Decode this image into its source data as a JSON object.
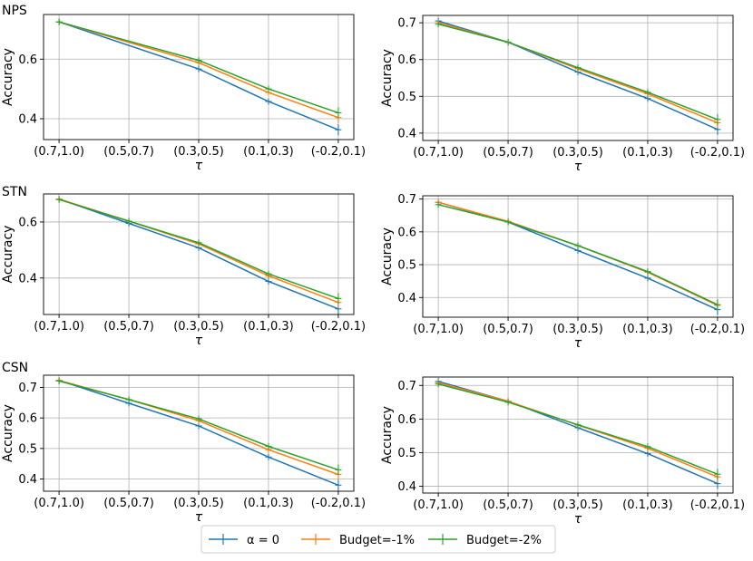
{
  "colors": {
    "alpha0": "#1f77b4",
    "budget1": "#ff7f0e",
    "budget2": "#2ca02c",
    "grid": "#b0b0b0"
  },
  "legend": {
    "location": "bottom-center",
    "items": [
      {
        "name": "α = 0",
        "color": "#1f77b4"
      },
      {
        "name": "Budget=-1%",
        "color": "#ff7f0e"
      },
      {
        "name": "Budget=-2%",
        "color": "#2ca02c"
      }
    ]
  },
  "chart_data": [
    {
      "type": "line",
      "row_label": "NPS",
      "xlabel": "τ",
      "ylabel": "Accuracy",
      "categories": [
        "(0.7,1.0)",
        "(0.5,0.7)",
        "(0.3,0.5)",
        "(0.1,0.3)",
        "(-0.2,0.1)"
      ],
      "ylim": [
        0.33,
        0.75
      ],
      "yticks": [
        0.4,
        0.6
      ],
      "ytick_labels": [
        "0.4",
        "0.6"
      ],
      "series": [
        {
          "name": "α = 0",
          "values": [
            0.725,
            null,
            0.567,
            0.458,
            0.363
          ]
        },
        {
          "name": "Budget=-1%",
          "values": [
            0.725,
            null,
            0.588,
            0.488,
            0.404
          ]
        },
        {
          "name": "Budget=-2%",
          "values": [
            0.725,
            null,
            0.596,
            0.5,
            0.42
          ]
        }
      ]
    },
    {
      "type": "line",
      "row_label": "",
      "xlabel": "τ",
      "ylabel": "Accuracy",
      "categories": [
        "(0.7,1.0)",
        "(0.5,0.7)",
        "(0.3,0.5)",
        "(0.1,0.3)",
        "(-0.2,0.1)"
      ],
      "ylim": [
        0.38,
        0.72
      ],
      "yticks": [
        0.4,
        0.5,
        0.6,
        0.7
      ],
      "ytick_labels": [
        "0.4",
        "0.5",
        "0.6",
        "0.7"
      ],
      "series": [
        {
          "name": "α = 0",
          "values": [
            0.705,
            0.647,
            0.566,
            0.494,
            0.41
          ]
        },
        {
          "name": "Budget=-1%",
          "values": [
            0.7,
            0.647,
            0.575,
            0.507,
            0.428
          ]
        },
        {
          "name": "Budget=-2%",
          "values": [
            0.696,
            0.647,
            0.578,
            0.511,
            0.437
          ]
        }
      ]
    },
    {
      "type": "line",
      "row_label": "STN",
      "xlabel": "τ",
      "ylabel": "Accuracy",
      "categories": [
        "(0.7,1.0)",
        "(0.5,0.7)",
        "(0.3,0.5)",
        "(0.1,0.3)",
        "(-0.2,0.1)"
      ],
      "ylim": [
        0.27,
        0.7
      ],
      "yticks": [
        0.4,
        0.6
      ],
      "ytick_labels": [
        "0.4",
        "0.6"
      ],
      "series": [
        {
          "name": "α = 0",
          "values": [
            0.682,
            0.595,
            0.508,
            0.388,
            0.29
          ]
        },
        {
          "name": "Budget=-1%",
          "values": [
            0.682,
            0.603,
            0.522,
            0.408,
            0.313
          ]
        },
        {
          "name": "Budget=-2%",
          "values": [
            0.68,
            0.603,
            0.526,
            0.415,
            0.327
          ]
        }
      ]
    },
    {
      "type": "line",
      "row_label": "",
      "xlabel": "τ",
      "ylabel": "Accuracy",
      "categories": [
        "(0.7,1.0)",
        "(0.5,0.7)",
        "(0.3,0.5)",
        "(0.1,0.3)",
        "(-0.2,0.1)"
      ],
      "ylim": [
        0.34,
        0.71
      ],
      "yticks": [
        0.4,
        0.5,
        0.6,
        0.7
      ],
      "ytick_labels": [
        "0.4",
        "0.5",
        "0.6",
        "0.7"
      ],
      "series": [
        {
          "name": "α = 0",
          "values": [
            0.69,
            0.63,
            0.543,
            0.459,
            0.363
          ]
        },
        {
          "name": "Budget=-1%",
          "values": [
            0.69,
            0.632,
            0.558,
            0.477,
            0.376
          ]
        },
        {
          "name": "Budget=-2%",
          "values": [
            0.683,
            0.63,
            0.558,
            0.479,
            0.378
          ]
        }
      ]
    },
    {
      "type": "line",
      "row_label": "CSN",
      "xlabel": "τ",
      "ylabel": "Accuracy",
      "categories": [
        "(0.7,1.0)",
        "(0.5,0.7)",
        "(0.3,0.5)",
        "(0.1,0.3)",
        "(-0.2,0.1)"
      ],
      "ylim": [
        0.36,
        0.74
      ],
      "yticks": [
        0.4,
        0.5,
        0.6,
        0.7
      ],
      "ytick_labels": [
        "0.4",
        "0.5",
        "0.6",
        "0.7"
      ],
      "series": [
        {
          "name": "α = 0",
          "values": [
            0.723,
            0.648,
            0.574,
            0.472,
            0.38
          ]
        },
        {
          "name": "Budget=-1%",
          "values": [
            0.723,
            0.66,
            0.591,
            0.496,
            0.415
          ]
        },
        {
          "name": "Budget=-2%",
          "values": [
            0.721,
            0.66,
            0.597,
            0.507,
            0.43
          ]
        }
      ]
    },
    {
      "type": "line",
      "row_label": "",
      "xlabel": "τ",
      "ylabel": "Accuracy",
      "categories": [
        "(0.7,1.0)",
        "(0.5,0.7)",
        "(0.3,0.5)",
        "(0.1,0.3)",
        "(-0.2,0.1)"
      ],
      "ylim": [
        0.38,
        0.725
      ],
      "yticks": [
        0.4,
        0.5,
        0.6,
        0.7
      ],
      "ytick_labels": [
        "0.4",
        "0.5",
        "0.6",
        "0.7"
      ],
      "series": [
        {
          "name": "α = 0",
          "values": [
            0.712,
            0.653,
            0.574,
            0.497,
            0.408
          ]
        },
        {
          "name": "Budget=-1%",
          "values": [
            0.708,
            0.653,
            0.582,
            0.513,
            0.428
          ]
        },
        {
          "name": "Budget=-2%",
          "values": [
            0.704,
            0.65,
            0.583,
            0.518,
            0.436
          ]
        }
      ]
    }
  ]
}
